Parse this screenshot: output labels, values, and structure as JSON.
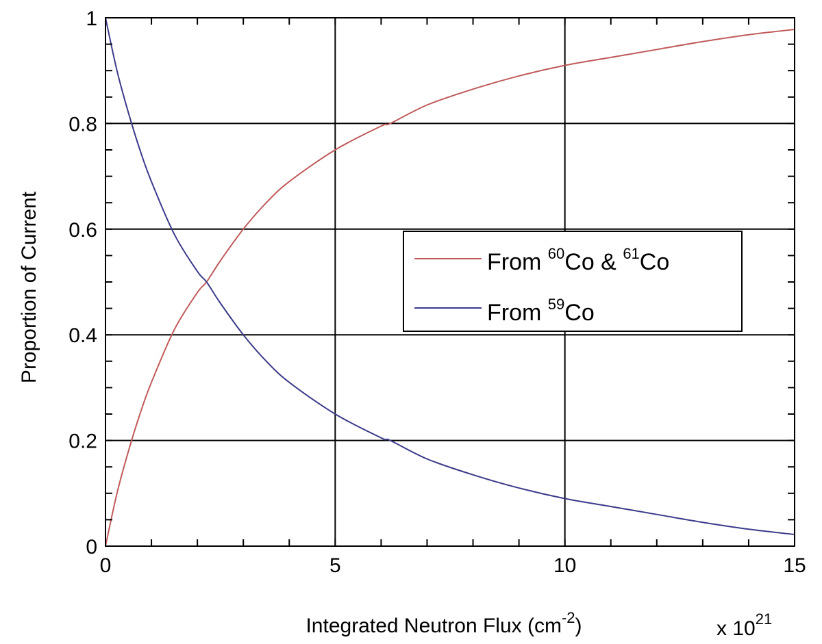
{
  "chart_data": {
    "type": "line",
    "xlabel": "Integrated Neutron Flux (cm",
    "xlabel_exponent": "-2",
    "xlabel_close": ")",
    "ylabel": "Proportion of Current",
    "x_multiplier": {
      "prefix": "x 10",
      "exponent": "21"
    },
    "xlim": [
      0,
      15
    ],
    "ylim": [
      0,
      1
    ],
    "x_ticks": [
      0,
      5,
      10,
      15
    ],
    "x_tick_labels": [
      "0",
      "5",
      "10",
      "15"
    ],
    "y_ticks": [
      0,
      0.2,
      0.4,
      0.6,
      0.8,
      1
    ],
    "y_tick_labels": [
      "0",
      "0.2",
      "0.4",
      "0.6",
      "0.8",
      "1"
    ],
    "grid": true,
    "legend_position": "center-right",
    "series": [
      {
        "name": "From 60Co & 61Co",
        "legend": {
          "prefix": "From ",
          "iso1": "60",
          "mid": "Co & ",
          "iso2": "61",
          "suffix": "Co"
        },
        "color": "#c05a5a",
        "x": [
          0,
          0.25,
          0.5,
          0.75,
          1,
          1.5,
          2,
          2.2,
          2.5,
          3,
          3.5,
          4,
          5,
          6,
          6.2,
          7,
          8,
          9,
          10,
          11,
          12,
          13,
          14,
          15
        ],
        "y": [
          0,
          0.1,
          0.18,
          0.25,
          0.31,
          0.41,
          0.48,
          0.5,
          0.54,
          0.6,
          0.65,
          0.69,
          0.75,
          0.795,
          0.8,
          0.835,
          0.865,
          0.89,
          0.91,
          0.925,
          0.94,
          0.955,
          0.968,
          0.978
        ]
      },
      {
        "name": "From 59Co",
        "legend": {
          "prefix": "From ",
          "iso1": "59",
          "suffix": "Co"
        },
        "color": "#3a3a8a",
        "x": [
          0,
          0.25,
          0.5,
          0.75,
          1,
          1.5,
          2,
          2.2,
          2.5,
          3,
          3.5,
          4,
          5,
          6,
          6.2,
          7,
          8,
          9,
          10,
          11,
          12,
          13,
          14,
          15
        ],
        "y": [
          1,
          0.9,
          0.82,
          0.75,
          0.69,
          0.59,
          0.52,
          0.5,
          0.46,
          0.4,
          0.35,
          0.31,
          0.25,
          0.205,
          0.2,
          0.165,
          0.135,
          0.11,
          0.09,
          0.075,
          0.06,
          0.045,
          0.032,
          0.022
        ]
      }
    ]
  }
}
